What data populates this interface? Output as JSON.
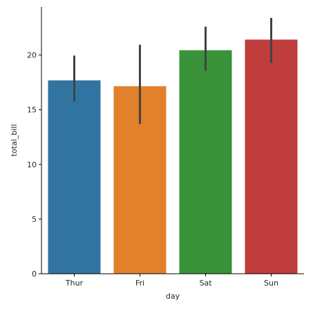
{
  "chart_data": {
    "type": "bar",
    "xlabel": "day",
    "ylabel": "total_bill",
    "categories": [
      "Thur",
      "Fri",
      "Sat",
      "Sun"
    ],
    "values": [
      17.68,
      17.15,
      20.44,
      21.41
    ],
    "error_low": [
      15.75,
      13.7,
      18.55,
      19.25
    ],
    "error_high": [
      19.95,
      20.95,
      22.6,
      23.4
    ],
    "colors": [
      "#3274a1",
      "#e1812c",
      "#3a923a",
      "#c03d3e"
    ],
    "error_color": "#424242",
    "ylim": [
      0,
      24.4
    ],
    "yticks": [
      0,
      5,
      10,
      15,
      20
    ],
    "grid": false,
    "legend": "none"
  }
}
